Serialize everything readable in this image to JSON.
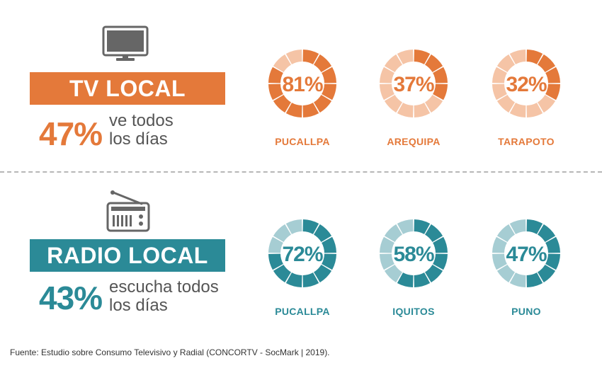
{
  "colors": {
    "tv_accent": "#E4793A",
    "tv_light": "#F5C4A6",
    "radio_accent": "#2B8A97",
    "radio_light": "#A6CDD3",
    "icon_gray": "#666666"
  },
  "sections": {
    "tv": {
      "icon": "monitor-icon",
      "banner": "TV LOCAL",
      "percent": "47%",
      "desc_line1": "ve todos",
      "desc_line2": "los días"
    },
    "radio": {
      "icon": "radio-icon",
      "banner": "RADIO LOCAL",
      "percent": "43%",
      "desc_line1": "escucha todos",
      "desc_line2": "los días"
    }
  },
  "chart_data": [
    {
      "type": "pie",
      "categories": [
        "PUCALLPA",
        "AREQUIPA",
        "TARAPOTO"
      ],
      "values": [
        81,
        37,
        32
      ],
      "labels": [
        "81%",
        "37%",
        "32%"
      ]
    },
    {
      "type": "pie",
      "categories": [
        "PUCALLPA",
        "IQUITOS",
        "PUNO"
      ],
      "values": [
        72,
        58,
        47
      ],
      "labels": [
        "72%",
        "58%",
        "47%"
      ]
    }
  ],
  "source": "Fuente:  Estudio sobre Consumo Televisivo y Radial (CONCORTV - SocMark | 2019)."
}
